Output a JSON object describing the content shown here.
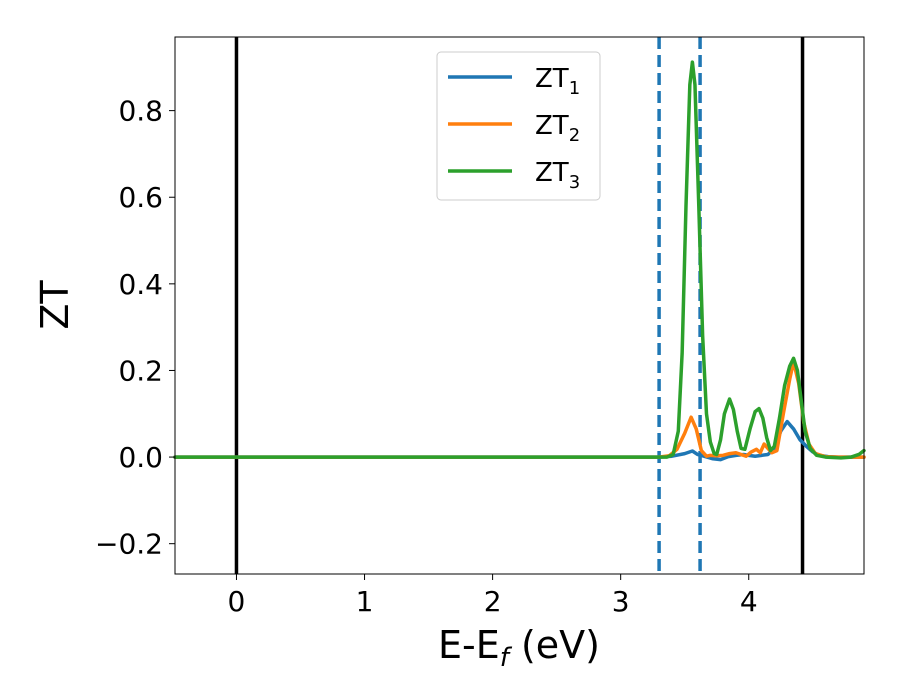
{
  "chart_data": {
    "type": "line",
    "xlabel": {
      "main": "E-E",
      "sub": "f",
      "suffix": " (eV)"
    },
    "ylabel": "ZT",
    "xlim": [
      -0.48,
      4.9
    ],
    "ylim": [
      -0.27,
      0.97
    ],
    "xticks": [
      0,
      1,
      2,
      3,
      4
    ],
    "yticks": [
      -0.2,
      0.0,
      0.2,
      0.4,
      0.6,
      0.8
    ],
    "xtick_labels": [
      "0",
      "1",
      "2",
      "3",
      "4"
    ],
    "ytick_labels": [
      "−0.2",
      "0.0",
      "0.2",
      "0.4",
      "0.6",
      "0.8"
    ],
    "legend_position": "top-center",
    "vertical_lines": [
      {
        "x": 0.0,
        "style": "solid",
        "color": "#000000"
      },
      {
        "x": 4.42,
        "style": "solid",
        "color": "#000000"
      },
      {
        "x": 3.3,
        "style": "dashed",
        "color": "#1f77b4"
      },
      {
        "x": 3.62,
        "style": "dashed",
        "color": "#1f77b4"
      }
    ],
    "series": [
      {
        "name": "ZT",
        "subscript": "1",
        "color": "#1f77b4",
        "points": [
          [
            -0.48,
            0
          ],
          [
            3.3,
            0
          ],
          [
            3.4,
            0.002
          ],
          [
            3.5,
            0.008
          ],
          [
            3.56,
            0.014
          ],
          [
            3.6,
            0.006
          ],
          [
            3.65,
            0.002
          ],
          [
            3.72,
            -0.004
          ],
          [
            3.78,
            -0.006
          ],
          [
            3.84,
            0.001
          ],
          [
            3.9,
            0.004
          ],
          [
            3.96,
            0.006
          ],
          [
            4.0,
            0.004
          ],
          [
            4.05,
            0.002
          ],
          [
            4.1,
            0.004
          ],
          [
            4.15,
            0.006
          ],
          [
            4.2,
            0.02
          ],
          [
            4.25,
            0.06
          ],
          [
            4.3,
            0.082
          ],
          [
            4.35,
            0.065
          ],
          [
            4.4,
            0.04
          ],
          [
            4.45,
            0.025
          ],
          [
            4.5,
            0.012
          ],
          [
            4.55,
            0.004
          ],
          [
            4.62,
            0.001
          ],
          [
            4.7,
            0
          ],
          [
            4.9,
            0
          ]
        ]
      },
      {
        "name": "ZT",
        "subscript": "2",
        "color": "#ff7f0e",
        "points": [
          [
            -0.48,
            0
          ],
          [
            3.3,
            0
          ],
          [
            3.38,
            0.003
          ],
          [
            3.44,
            0.018
          ],
          [
            3.5,
            0.055
          ],
          [
            3.55,
            0.092
          ],
          [
            3.59,
            0.065
          ],
          [
            3.63,
            0.015
          ],
          [
            3.67,
            0.002
          ],
          [
            3.7,
            0.004
          ],
          [
            3.75,
            0.003
          ],
          [
            3.8,
            0.004
          ],
          [
            3.85,
            0.008
          ],
          [
            3.9,
            0.01
          ],
          [
            3.95,
            0.005
          ],
          [
            3.98,
            0.002
          ],
          [
            4.02,
            0.012
          ],
          [
            4.06,
            0.018
          ],
          [
            4.09,
            0.01
          ],
          [
            4.12,
            0.03
          ],
          [
            4.15,
            0.02
          ],
          [
            4.18,
            0.01
          ],
          [
            4.22,
            0.015
          ],
          [
            4.27,
            0.1
          ],
          [
            4.32,
            0.18
          ],
          [
            4.35,
            0.22
          ],
          [
            4.39,
            0.17
          ],
          [
            4.43,
            0.08
          ],
          [
            4.47,
            0.03
          ],
          [
            4.52,
            0.008
          ],
          [
            4.6,
            0.001
          ],
          [
            4.7,
            0
          ],
          [
            4.9,
            0
          ]
        ]
      },
      {
        "name": "ZT",
        "subscript": "3",
        "color": "#2ca02c",
        "points": [
          [
            -0.48,
            0
          ],
          [
            3.36,
            0
          ],
          [
            3.41,
            0.006
          ],
          [
            3.45,
            0.06
          ],
          [
            3.48,
            0.24
          ],
          [
            3.51,
            0.58
          ],
          [
            3.54,
            0.86
          ],
          [
            3.56,
            0.912
          ],
          [
            3.58,
            0.86
          ],
          [
            3.61,
            0.58
          ],
          [
            3.64,
            0.28
          ],
          [
            3.67,
            0.1
          ],
          [
            3.7,
            0.035
          ],
          [
            3.73,
            0.008
          ],
          [
            3.75,
            0.006
          ],
          [
            3.78,
            0.04
          ],
          [
            3.81,
            0.1
          ],
          [
            3.85,
            0.134
          ],
          [
            3.88,
            0.11
          ],
          [
            3.91,
            0.06
          ],
          [
            3.94,
            0.02
          ],
          [
            3.97,
            0.018
          ],
          [
            4.01,
            0.065
          ],
          [
            4.05,
            0.105
          ],
          [
            4.08,
            0.112
          ],
          [
            4.11,
            0.09
          ],
          [
            4.14,
            0.045
          ],
          [
            4.17,
            0.015
          ],
          [
            4.2,
            0.025
          ],
          [
            4.24,
            0.09
          ],
          [
            4.28,
            0.165
          ],
          [
            4.32,
            0.21
          ],
          [
            4.35,
            0.228
          ],
          [
            4.38,
            0.2
          ],
          [
            4.41,
            0.13
          ],
          [
            4.44,
            0.06
          ],
          [
            4.48,
            0.02
          ],
          [
            4.53,
            0.004
          ],
          [
            4.6,
            0.0
          ],
          [
            4.72,
            -0.002
          ],
          [
            4.8,
            0.0
          ],
          [
            4.86,
            0.006
          ],
          [
            4.9,
            0.015
          ]
        ]
      }
    ]
  }
}
